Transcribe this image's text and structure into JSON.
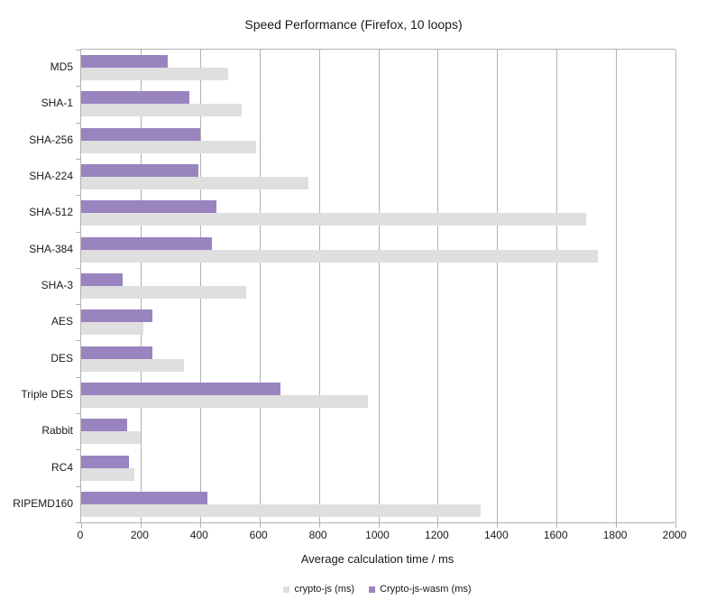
{
  "chart_data": {
    "type": "bar",
    "orientation": "horizontal",
    "title": "Speed Performance (Firefox, 10 loops)",
    "xlabel": "Average calculation time / ms",
    "ylabel": "",
    "xlim": [
      0,
      2000
    ],
    "xticks": [
      0,
      200,
      400,
      600,
      800,
      1000,
      1200,
      1400,
      1600,
      1800,
      2000
    ],
    "grid": true,
    "legend_position": "bottom",
    "categories": [
      "MD5",
      "SHA-1",
      "SHA-256",
      "SHA-224",
      "SHA-512",
      "SHA-384",
      "SHA-3",
      "AES",
      "DES",
      "Triple DES",
      "Rabbit",
      "RC4",
      "RIPEMD160"
    ],
    "series": [
      {
        "name": "crypto-js (ms)",
        "color": "#dfdfdf",
        "values": [
          495,
          540,
          590,
          765,
          1700,
          1740,
          555,
          210,
          345,
          965,
          200,
          180,
          1345
        ]
      },
      {
        "name": "Crypto-js-wasm (ms)",
        "color": "#9a84c0",
        "values": [
          290,
          365,
          400,
          395,
          455,
          440,
          140,
          240,
          240,
          670,
          155,
          160,
          425
        ]
      }
    ],
    "colors": {
      "gridline": "#b2b2b2",
      "text": "#1a1a1a",
      "background": "#ffffff"
    }
  }
}
